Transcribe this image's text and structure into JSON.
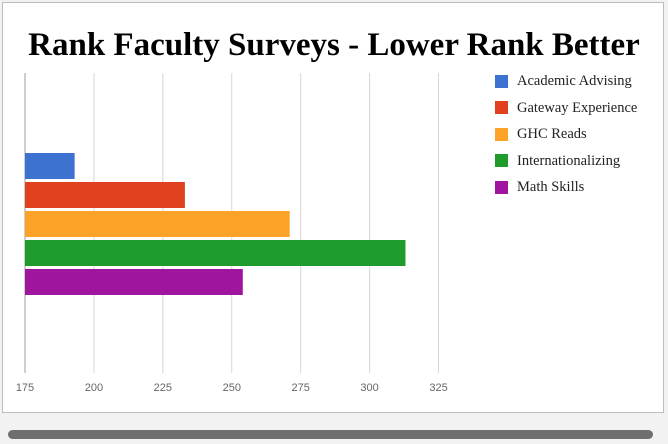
{
  "chart_data": {
    "type": "bar",
    "orientation": "horizontal",
    "title": "Rank Faculty Surveys - Lower Rank Better",
    "xlabel": "",
    "ylabel": "",
    "xlim": [
      175,
      337.5
    ],
    "x_ticks": [
      175,
      200,
      225,
      250,
      275,
      300,
      325
    ],
    "grid": true,
    "legend_position": "right",
    "series": [
      {
        "name": "Academic Advising",
        "value": 193,
        "color": "#3d72d0"
      },
      {
        "name": "Gateway Experience",
        "value": 233,
        "color": "#e0421f"
      },
      {
        "name": "GHC Reads",
        "value": 271,
        "color": "#fca226"
      },
      {
        "name": "Internationalizing",
        "value": 313,
        "color": "#1f9b2b"
      },
      {
        "name": "Math Skills",
        "value": 254,
        "color": "#a0159e"
      }
    ]
  }
}
